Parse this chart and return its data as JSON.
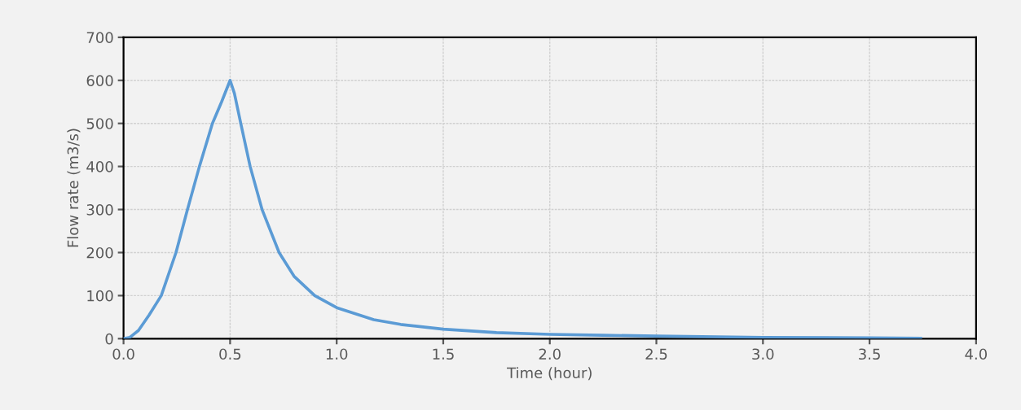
{
  "chart_data": {
    "type": "line",
    "xlabel": "Time (hour)",
    "ylabel": "Flow rate (m3/s)",
    "series": [
      {
        "color": "#5b9bd5",
        "x": [
          0,
          0.03,
          0.07,
          0.12,
          0.177,
          0.246,
          0.3,
          0.356,
          0.417,
          0.46,
          0.5,
          0.52,
          0.55,
          0.594,
          0.65,
          0.73,
          0.8,
          0.897,
          1.0,
          1.174,
          1.3,
          1.5,
          1.75,
          2.0,
          2.25,
          2.5,
          3.0,
          3.5,
          3.74
        ],
        "values": [
          0,
          3,
          19,
          55,
          100,
          200,
          300,
          400,
          500,
          550,
          600,
          570,
          500,
          400,
          300,
          200,
          145,
          100,
          72,
          44,
          33,
          22,
          14,
          10,
          8,
          6,
          3,
          2,
          1
        ]
      }
    ],
    "xlim": [
      0,
      4
    ],
    "xticks": [
      {
        "value": 0,
        "label": "0.0"
      },
      {
        "value": 0.5,
        "label": "0.5"
      },
      {
        "value": 1,
        "label": "1.0"
      },
      {
        "value": 1.5,
        "label": "1.5"
      },
      {
        "value": 2,
        "label": "2.0"
      },
      {
        "value": 2.5,
        "label": "2.5"
      },
      {
        "value": 3,
        "label": "3.0"
      },
      {
        "value": 3.5,
        "label": "3.5"
      },
      {
        "value": 4,
        "label": "4.0"
      }
    ],
    "ylim": [
      0,
      700
    ],
    "yticks": [
      0,
      100,
      200,
      300,
      400,
      500,
      600,
      700
    ],
    "grid": true,
    "marker": "none",
    "line_style": "solid"
  }
}
